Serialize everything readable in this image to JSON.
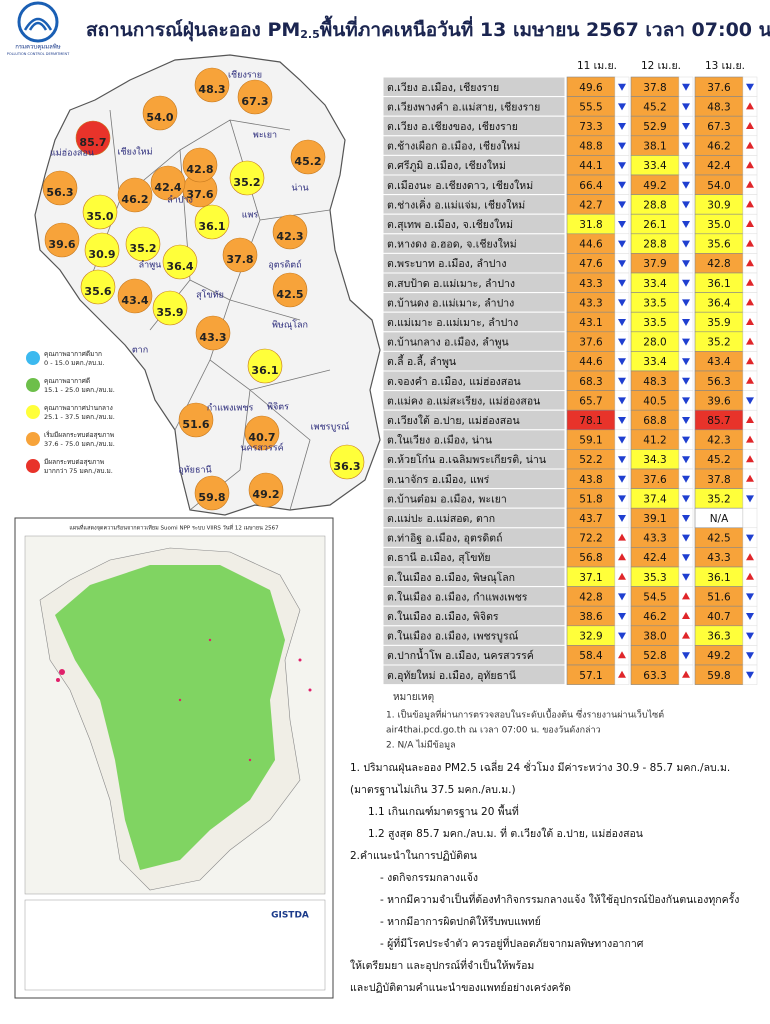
{
  "header": {
    "org_th": "กรมควบคุมมลพิษ",
    "org_en": "POLLUTION CONTROL DEPARTMENT",
    "title_prefix": "สถานการณ์ฝุ่นละออง PM",
    "title_sub": "2.5",
    "title_suffix": "พื้นที่ภาคเหนือวันที่ 13 เมษายน 2567 เวลา 07:00 น."
  },
  "legend": {
    "levels": [
      {
        "color": "#3cb9ef",
        "label": "คุณภาพอากาศดีมาก",
        "range": "0 - 15.0 มคก./ลบ.ม.",
        "max": 15
      },
      {
        "color": "#6dbf4a",
        "label": "คุณภาพอากาศดี",
        "range": "15.1 - 25.0 มคก./ลบ.ม.",
        "max": 25
      },
      {
        "color": "#ffff3a",
        "label": "คุณภาพอากาศปานกลาง",
        "range": "25.1 - 37.5 มคก./ลบ.ม.",
        "max": 37.5
      },
      {
        "color": "#f7a33a",
        "label": "เริ่มมีผลกระทบต่อสุขภาพ",
        "range": "37.6 - 75.0 มคก./ลบ.ม.",
        "max": 75
      },
      {
        "color": "#e8332a",
        "label": "มีผลกระทบต่อสุขภาพ",
        "range": "มากกว่า 75 มคก./ลบ.ม."
      }
    ]
  },
  "map": {
    "provinces": [
      "เชียงราย",
      "แม่ฮ่องสอน",
      "เชียงใหม่",
      "พะเยา",
      "น่าน",
      "ลำปาง",
      "แพร่",
      "ลำพูน",
      "อุตรดิตถ์",
      "สุโขทัย",
      "ตาก",
      "พิษณุโลก",
      "กำแพงเพชร",
      "พิจิตร",
      "เพชรบูรณ์",
      "นครสวรรค์",
      "อุทัยธานี"
    ]
  },
  "hotspot": {
    "title": "แผนที่แสดงจุดความร้อนจากดาวเทียม Suomi NPP ระบบ VIIRS วันที่ 12 เมษายน 2567",
    "credit": "GISTDA"
  },
  "table": {
    "columns": [
      "11 เม.ย.",
      "12 เม.ย.",
      "13 เม.ย."
    ],
    "rows": [
      {
        "station": "ต.เวียง อ.เมือง, เชียงราย",
        "values": [
          "49.6",
          "37.8",
          "37.6"
        ],
        "trend": [
          "down",
          "down",
          "down"
        ]
      },
      {
        "station": "ต.เวียงพางคำ อ.แม่สาย, เชียงราย",
        "values": [
          "55.5",
          "45.2",
          "48.3"
        ],
        "trend": [
          "down",
          "down",
          "up"
        ]
      },
      {
        "station": "ต.เวียง อ.เชียงของ, เชียงราย",
        "values": [
          "73.3",
          "52.9",
          "67.3"
        ],
        "trend": [
          "down",
          "down",
          "up"
        ]
      },
      {
        "station": "ต.ช้างเผือก อ.เมือง, เชียงใหม่",
        "values": [
          "48.8",
          "38.1",
          "46.2"
        ],
        "trend": [
          "down",
          "down",
          "up"
        ]
      },
      {
        "station": "ต.ศรีภูมิ อ.เมือง, เชียงใหม่",
        "values": [
          "44.1",
          "33.4",
          "42.4"
        ],
        "trend": [
          "down",
          "down",
          "up"
        ]
      },
      {
        "station": "ต.เมืองนะ อ.เชียงดาว, เชียงใหม่",
        "values": [
          "66.4",
          "49.2",
          "54.0"
        ],
        "trend": [
          "down",
          "down",
          "up"
        ]
      },
      {
        "station": "ต.ช่างเคิ่ง อ.แม่แจ่ม, เชียงใหม่",
        "values": [
          "42.7",
          "28.8",
          "30.9"
        ],
        "trend": [
          "down",
          "down",
          "up"
        ]
      },
      {
        "station": "ต.สุเทพ อ.เมือง, จ.เชียงใหม่",
        "values": [
          "31.8",
          "26.1",
          "35.0"
        ],
        "trend": [
          "down",
          "down",
          "up"
        ]
      },
      {
        "station": "ต.หางดง อ.ฮอด, จ.เชียงใหม่",
        "values": [
          "44.6",
          "28.8",
          "35.6"
        ],
        "trend": [
          "down",
          "down",
          "up"
        ]
      },
      {
        "station": "ต.พระบาท อ.เมือง, ลำปาง",
        "values": [
          "47.6",
          "37.9",
          "42.8"
        ],
        "trend": [
          "down",
          "down",
          "up"
        ]
      },
      {
        "station": "ต.สบป้าด อ.แม่เมาะ, ลำปาง",
        "values": [
          "43.3",
          "33.4",
          "36.1"
        ],
        "trend": [
          "down",
          "down",
          "up"
        ]
      },
      {
        "station": "ต.บ้านดง อ.แม่เมาะ, ลำปาง",
        "values": [
          "43.3",
          "33.5",
          "36.4"
        ],
        "trend": [
          "down",
          "down",
          "up"
        ]
      },
      {
        "station": "ต.แม่เมาะ อ.แม่เมาะ, ลำปาง",
        "values": [
          "43.1",
          "33.5",
          "35.9"
        ],
        "trend": [
          "down",
          "down",
          "up"
        ]
      },
      {
        "station": "ต.บ้านกลาง อ.เมือง, ลำพูน",
        "values": [
          "37.6",
          "28.0",
          "35.2"
        ],
        "trend": [
          "down",
          "down",
          "up"
        ]
      },
      {
        "station": "ต.ลี้ อ.ลี้, ลำพูน",
        "values": [
          "44.6",
          "33.4",
          "43.4"
        ],
        "trend": [
          "down",
          "down",
          "up"
        ]
      },
      {
        "station": "ต.จองคำ อ.เมือง, แม่ฮ่องสอน",
        "values": [
          "68.3",
          "48.3",
          "56.3"
        ],
        "trend": [
          "down",
          "down",
          "up"
        ]
      },
      {
        "station": "ต.แม่คง อ.แม่สะเรียง, แม่ฮ่องสอน",
        "values": [
          "65.7",
          "40.5",
          "39.6"
        ],
        "trend": [
          "down",
          "down",
          "down"
        ]
      },
      {
        "station": "ต.เวียงใต้ อ.ปาย, แม่ฮ่องสอน",
        "values": [
          "78.1",
          "68.8",
          "85.7"
        ],
        "trend": [
          "down",
          "down",
          "up"
        ]
      },
      {
        "station": "ต.ในเวียง อ.เมือง, น่าน",
        "values": [
          "59.1",
          "41.2",
          "42.3"
        ],
        "trend": [
          "down",
          "down",
          "up"
        ]
      },
      {
        "station": "ต.ห้วยโก๋น อ.เฉลิมพระเกียรติ, น่าน",
        "values": [
          "52.2",
          "34.3",
          "45.2"
        ],
        "trend": [
          "down",
          "down",
          "up"
        ]
      },
      {
        "station": "ต.นาจักร อ.เมือง, แพร่",
        "values": [
          "43.8",
          "37.6",
          "37.8"
        ],
        "trend": [
          "down",
          "down",
          "up"
        ]
      },
      {
        "station": "ต.บ้านต๋อม อ.เมือง, พะเยา",
        "values": [
          "51.8",
          "37.4",
          "35.2"
        ],
        "trend": [
          "down",
          "down",
          "down"
        ]
      },
      {
        "station": "ต.แม่ปะ อ.แม่สอด, ตาก",
        "values": [
          "43.7",
          "39.1",
          "N/A"
        ],
        "trend": [
          "down",
          "down"
        ]
      },
      {
        "station": "ต.ท่าอิฐ อ.เมือง, อุตรดิตถ์",
        "values": [
          "72.2",
          "43.3",
          "42.5"
        ],
        "trend": [
          "up",
          "down",
          "down"
        ]
      },
      {
        "station": "ต.ธานี อ.เมือง, สุโขทัย",
        "values": [
          "56.8",
          "42.4",
          "43.3"
        ],
        "trend": [
          "up",
          "down",
          "up"
        ]
      },
      {
        "station": "ต.ในเมือง อ.เมือง, พิษณุโลก",
        "values": [
          "37.1",
          "35.3",
          "36.1"
        ],
        "trend": [
          "up",
          "down",
          "up"
        ]
      },
      {
        "station": "ต.ในเมือง อ.เมือง, กำแพงเพชร",
        "values": [
          "42.8",
          "54.5",
          "51.6"
        ],
        "trend": [
          "down",
          "up",
          "down"
        ]
      },
      {
        "station": "ต.ในเมือง อ.เมือง, พิจิตร",
        "values": [
          "38.6",
          "46.2",
          "40.7"
        ],
        "trend": [
          "down",
          "up",
          "down"
        ]
      },
      {
        "station": "ต.ในเมือง อ.เมือง, เพชรบูรณ์",
        "values": [
          "32.9",
          "38.0",
          "36.3"
        ],
        "trend": [
          "down",
          "up",
          "down"
        ]
      },
      {
        "station": "ต.ปากน้ำโพ อ.เมือง, นครสวรรค์",
        "values": [
          "58.4",
          "52.8",
          "49.2"
        ],
        "trend": [
          "up",
          "down",
          "down"
        ]
      },
      {
        "station": "ต.อุทัยใหม่ อ.เมือง, อุทัยธานี",
        "values": [
          "57.1",
          "63.3",
          "59.8"
        ],
        "trend": [
          "up",
          "up",
          "down"
        ]
      }
    ]
  },
  "notes": {
    "heading": "หมายเหตุ",
    "lines": [
      "1. เป็นข้อมูลที่ผ่านการตรวจสอบในระดับเบื้องต้น ซึ่งรายงานผ่านเว็บไซต์",
      "air4thai.pcd.go.th ณ เวลา 07:00 น. ของวันดังกล่าว",
      "2. N/A ไม่มีข้อมูล"
    ]
  },
  "summary": {
    "lines": [
      "1. ปริมาณฝุ่นละออง PM2.5 เฉลี่ย 24 ชั่วโมง มีค่าระหว่าง 30.9 - 85.7 มคก./ลบ.ม.",
      "(มาตรฐานไม่เกิน 37.5 มคก./ลบ.ม.)",
      "1.1 เกินเกณฑ์มาตรฐาน 20 พื้นที่",
      "1.2 สูงสุด 85.7 มคก./ลบ.ม. ที่ ต.เวียงใต้ อ.ปาย, แม่ฮ่องสอน",
      "2.คำแนะนำในการปฏิบัติตน",
      "- งดกิจกรรมกลางแจ้ง",
      "- หากมีความจำเป็นที่ต้องทำกิจกรรมกลางแจ้ง ให้ใช้อุปกรณ์ป้องกันตนเองทุกครั้ง",
      "- หากมีอาการผิดปกติให้รีบพบแพทย์",
      "- ผู้ที่มีโรคประจำตัว ควรอยู่ที่ปลอดภัยจากมลพิษทางอากาศ",
      "ให้เตรียมยา และอุปกรณ์ที่จำเป็นให้พร้อม",
      "และปฏิบัติตามคำแนะนำของแพทย์อย่างเคร่งครัด"
    ]
  }
}
